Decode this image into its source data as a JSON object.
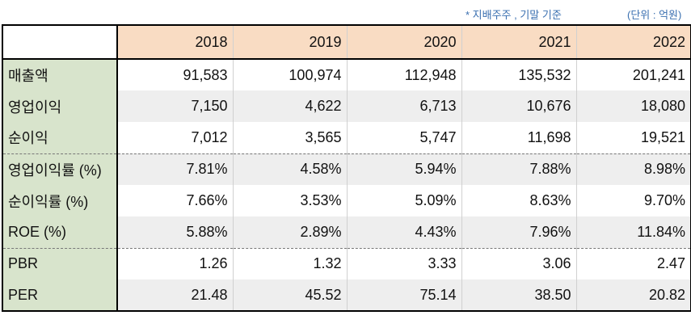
{
  "notes": {
    "basis": "* 지배주주 , 기말 기준",
    "unit": "(단위 : 억원)"
  },
  "table": {
    "columns": [
      "2018",
      "2019",
      "2020",
      "2021",
      "2022"
    ],
    "rows": [
      {
        "label": "매출액",
        "values": [
          "91,583",
          "100,974",
          "112,948",
          "135,532",
          "201,241"
        ]
      },
      {
        "label": "영업이익",
        "values": [
          "7,150",
          "4,622",
          "6,713",
          "10,676",
          "18,080"
        ]
      },
      {
        "label": "순이익",
        "values": [
          "7,012",
          "3,565",
          "5,747",
          "11,698",
          "19,521"
        ]
      },
      {
        "label": "영업이익률 (%)",
        "values": [
          "7.81%",
          "4.58%",
          "5.94%",
          "7.88%",
          "8.98%"
        ]
      },
      {
        "label": "순이익률 (%)",
        "values": [
          "7.66%",
          "3.53%",
          "5.09%",
          "8.63%",
          "9.70%"
        ]
      },
      {
        "label": "ROE (%)",
        "values": [
          "5.88%",
          "2.89%",
          "4.43%",
          "7.96%",
          "11.84%"
        ]
      },
      {
        "label": "PBR",
        "values": [
          "1.26",
          "1.32",
          "3.33",
          "3.06",
          "2.47"
        ]
      },
      {
        "label": "PER",
        "values": [
          "21.48",
          "45.52",
          "75.14",
          "38.50",
          "20.82"
        ]
      }
    ]
  },
  "colors": {
    "header_bg": "#f9dcc3",
    "label_bg": "#d8e4cc",
    "shade_bg": "#eeeeee",
    "note_text": "#3a6fb0"
  }
}
